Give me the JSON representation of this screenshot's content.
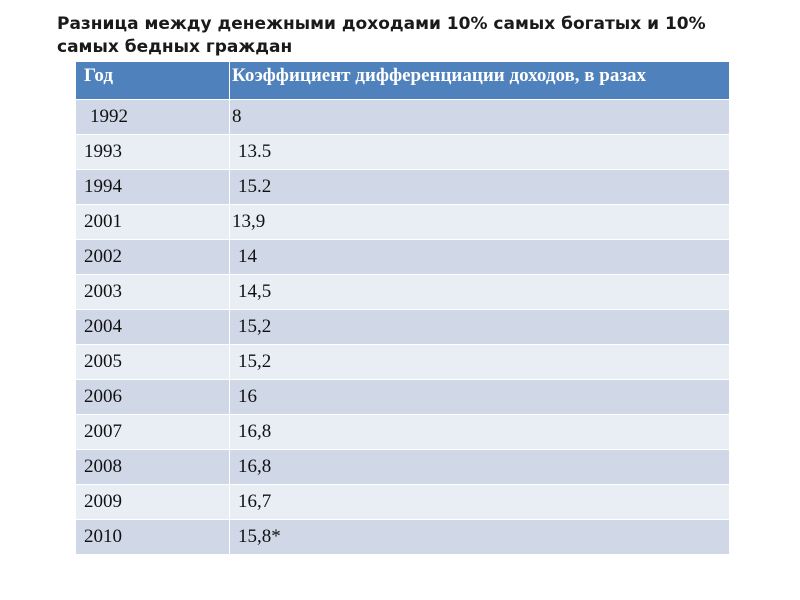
{
  "title": "Разница между денежными доходами 10% самых богатых и 10% самых бедных граждан",
  "table": {
    "headers": [
      "Год",
      "Коэффициент дифференциации доходов, в разах"
    ],
    "rows": [
      {
        "year": "1992",
        "value": "8"
      },
      {
        "year": "1993",
        "value": "13.5"
      },
      {
        "year": "1994",
        "value": "15.2"
      },
      {
        "year": "2001",
        "value": "13,9"
      },
      {
        "year": "2002",
        "value": "14"
      },
      {
        "year": "2003",
        "value": "14,5"
      },
      {
        "year": "2004",
        "value": "15,2"
      },
      {
        "year": "2005",
        "value": "15,2"
      },
      {
        "year": "2006",
        "value": "16"
      },
      {
        "year": "2007",
        "value": "16,8"
      },
      {
        "year": "2008",
        "value": "16,8"
      },
      {
        "year": "2009",
        "value": "16,7"
      },
      {
        "year": "2010",
        "value": "15,8*"
      }
    ]
  },
  "colors": {
    "header_bg": "#4f81bd",
    "row_dark": "#d0d8e8",
    "row_light": "#e9edf4"
  }
}
